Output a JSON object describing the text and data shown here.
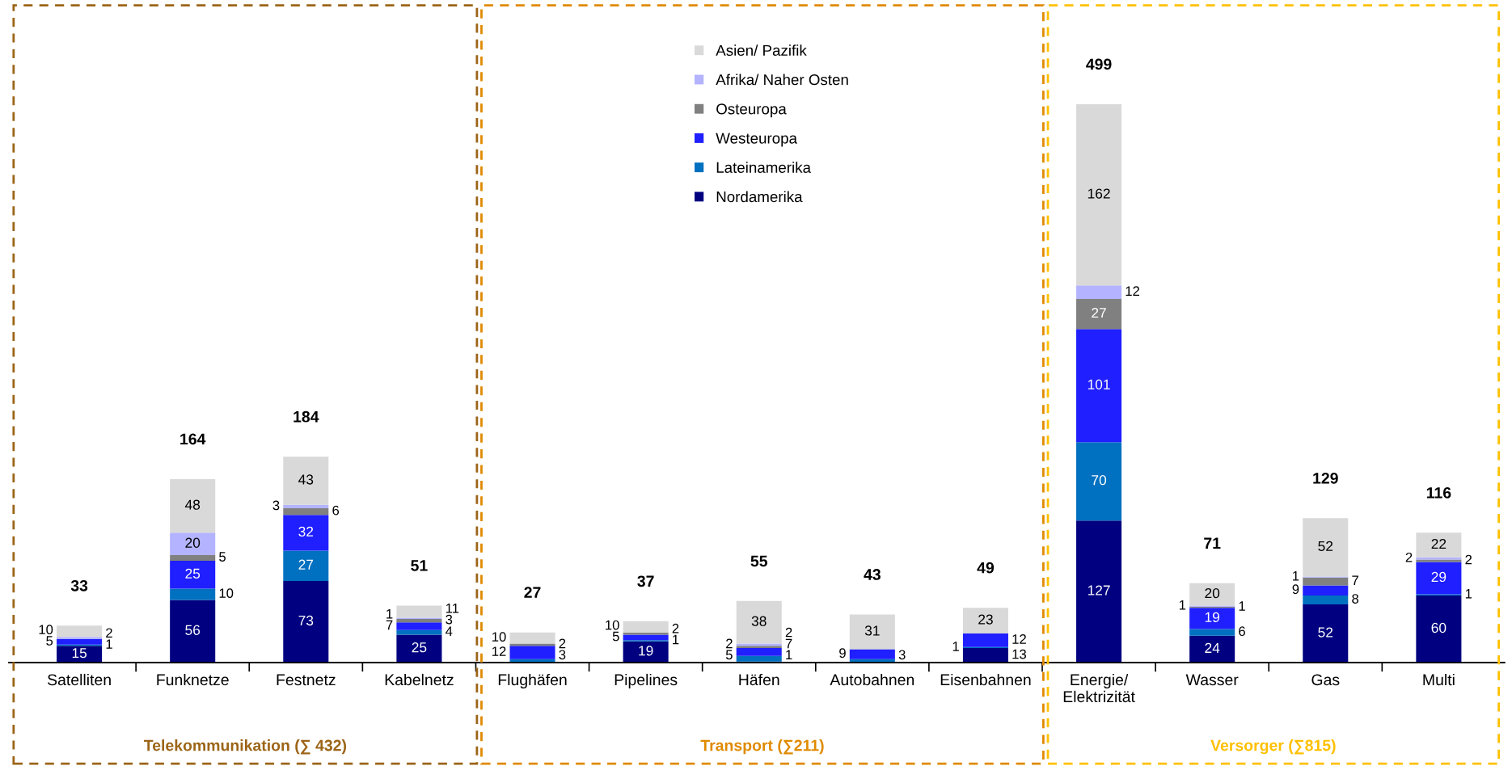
{
  "chart_data": {
    "type": "bar",
    "stacked": true,
    "data_labels": true,
    "legend": "top",
    "grid": false,
    "tick_labels": "x",
    "categories": [
      "Satelliten",
      "Funknetze",
      "Festnetz",
      "Kabelnetz",
      "Flughäfen",
      "Pipelines",
      "Häfen",
      "Autobahnen",
      "Eisenbahnen",
      "Energie/\nElektrizität",
      "Wasser",
      "Gas",
      "Multi"
    ],
    "series": [
      {
        "name": "Nordamerika",
        "color": "#000080",
        "values": [
          15,
          56,
          73,
          25,
          null,
          19,
          1,
          null,
          13,
          127,
          24,
          52,
          60
        ]
      },
      {
        "name": "Lateinamerika",
        "color": "#0070c0",
        "values": [
          1,
          10,
          27,
          4,
          3,
          1,
          5,
          3,
          1,
          70,
          6,
          8,
          1
        ]
      },
      {
        "name": "Westeuropa",
        "color": "#1f1fff",
        "values": [
          5,
          25,
          32,
          7,
          12,
          5,
          7,
          9,
          12,
          101,
          19,
          9,
          29
        ]
      },
      {
        "name": "Osteuropa",
        "color": "#808080",
        "values": [
          null,
          5,
          6,
          3,
          2,
          2,
          2,
          null,
          null,
          27,
          1,
          7,
          2
        ]
      },
      {
        "name": "Afrika/ Naher Osten",
        "color": "#b3b3ff",
        "values": [
          2,
          20,
          3,
          1,
          null,
          null,
          2,
          null,
          null,
          12,
          1,
          1,
          2
        ]
      },
      {
        "name": "Asien/ Pazifik",
        "color": "#d9d9d9",
        "values": [
          10,
          48,
          43,
          11,
          10,
          10,
          38,
          31,
          23,
          162,
          20,
          52,
          22
        ]
      }
    ],
    "totals": [
      "33",
      "164",
      "184",
      "51",
      "27",
      "37",
      "55",
      "43",
      "49",
      "499",
      "71",
      "129",
      "116"
    ],
    "annotations": [
      "Telekommunikation (∑ 432)",
      "Transport (∑211)",
      "Versorger (∑815)"
    ]
  }
}
